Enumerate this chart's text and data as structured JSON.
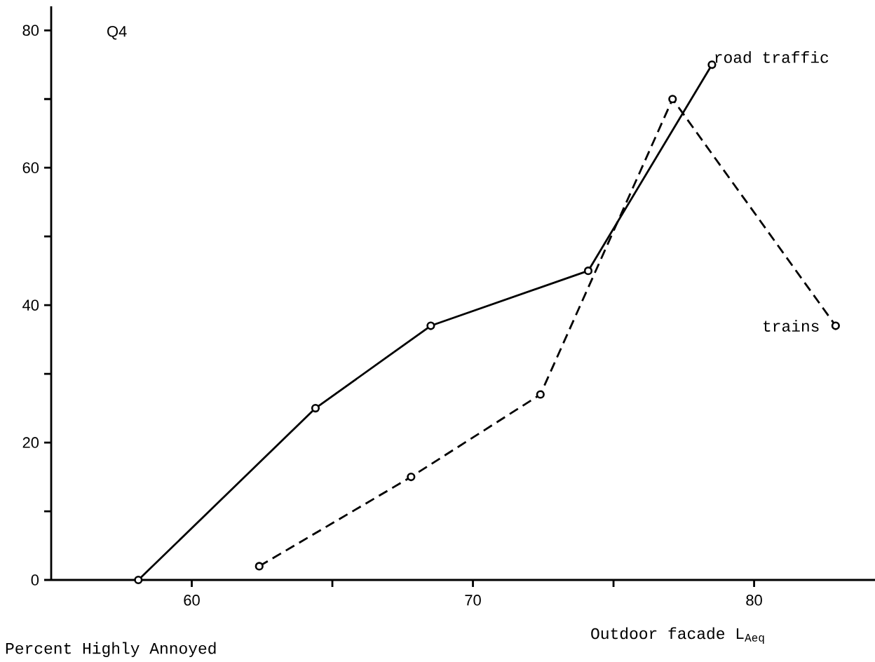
{
  "chart_data": {
    "type": "line",
    "xlabel": "Outdoor facade L$_{Aeq}$",
    "ylabel": "Percent Highly Annoyed",
    "annotations": [
      "Q4"
    ],
    "xlim": [
      55,
      84.3
    ],
    "ylim": [
      0,
      83.5
    ],
    "xticks": [
      60,
      {
        "value": 65,
        "label": null
      },
      70,
      {
        "value": 75,
        "label": null
      },
      80
    ],
    "yticks": [
      0,
      {
        "value": 10,
        "label": null
      },
      20,
      {
        "value": 30,
        "label": null
      },
      40,
      {
        "value": 50,
        "label": null
      },
      60,
      {
        "value": 70,
        "label": null
      },
      80
    ],
    "grid": false,
    "legend": false,
    "marker": "circle",
    "series": [
      {
        "name": "road traffic",
        "color": "#000000",
        "line_style": "solid",
        "x": [
          58.1,
          64.4,
          68.5,
          74.1,
          78.5
        ],
        "values": [
          0,
          25,
          37,
          45,
          75
        ]
      },
      {
        "name": "trains",
        "color": "#000000",
        "line_style": "dashed",
        "x": [
          62.4,
          67.8,
          72.4,
          77.1,
          82.9
        ],
        "values": [
          2,
          15,
          27,
          70,
          37
        ]
      }
    ]
  }
}
